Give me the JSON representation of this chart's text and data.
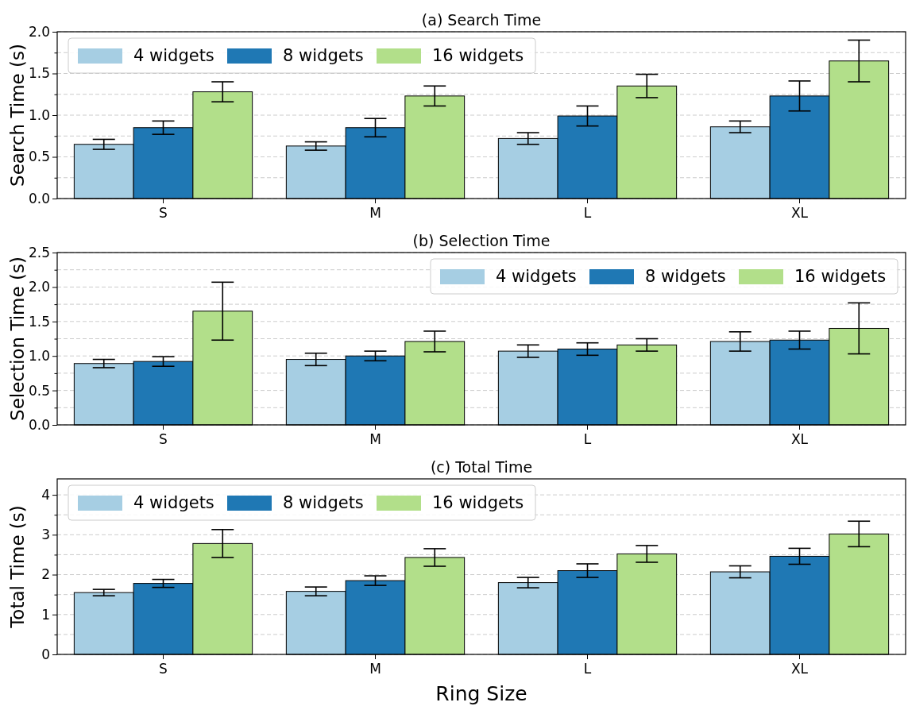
{
  "chart_data": [
    {
      "type": "bar",
      "title": "(a) Search Time",
      "ylabel": "Search Time (s)",
      "categories": [
        "S",
        "M",
        "L",
        "XL"
      ],
      "ylim": [
        0,
        2.0
      ],
      "yticks": [
        {
          "value": 0,
          "label": "0.0"
        },
        {
          "value": 0.25,
          "label": null
        },
        {
          "value": 0.5,
          "label": "0.5"
        },
        {
          "value": 0.75,
          "label": null
        },
        {
          "value": 1,
          "label": "1.0"
        },
        {
          "value": 1.25,
          "label": null
        },
        {
          "value": 1.5,
          "label": "1.5"
        },
        {
          "value": 1.75,
          "label": null
        },
        {
          "value": 2,
          "label": "2.0"
        }
      ],
      "grid": "y",
      "legend": "top left",
      "series": [
        {
          "name": "4 widgets",
          "color": "#a6cee3",
          "values": [
            0.65,
            0.63,
            0.72,
            0.86
          ],
          "errors": [
            0.06,
            0.05,
            0.07,
            0.07
          ]
        },
        {
          "name": "8 widgets",
          "color": "#1f78b4",
          "values": [
            0.85,
            0.85,
            0.99,
            1.23
          ],
          "errors": [
            0.08,
            0.11,
            0.12,
            0.18
          ]
        },
        {
          "name": "16 widgets",
          "color": "#b2df8a",
          "values": [
            1.28,
            1.23,
            1.35,
            1.65
          ],
          "errors": [
            0.12,
            0.12,
            0.14,
            0.25
          ]
        }
      ]
    },
    {
      "type": "bar",
      "title": "(b) Selection Time",
      "ylabel": "Selection Time (s)",
      "categories": [
        "S",
        "M",
        "L",
        "XL"
      ],
      "ylim": [
        0,
        2.5
      ],
      "yticks": [
        {
          "value": 0,
          "label": "0.0"
        },
        {
          "value": 0.25,
          "label": null
        },
        {
          "value": 0.5,
          "label": "0.5"
        },
        {
          "value": 0.75,
          "label": null
        },
        {
          "value": 1,
          "label": "1.0"
        },
        {
          "value": 1.25,
          "label": null
        },
        {
          "value": 1.5,
          "label": "1.5"
        },
        {
          "value": 1.75,
          "label": null
        },
        {
          "value": 2,
          "label": "2.0"
        },
        {
          "value": 2.25,
          "label": null
        },
        {
          "value": 2.5,
          "label": "2.5"
        }
      ],
      "grid": "y",
      "legend": "top right",
      "series": [
        {
          "name": "4 widgets",
          "color": "#a6cee3",
          "values": [
            0.89,
            0.95,
            1.07,
            1.21
          ],
          "errors": [
            0.06,
            0.09,
            0.09,
            0.14
          ]
        },
        {
          "name": "8 widgets",
          "color": "#1f78b4",
          "values": [
            0.92,
            1.0,
            1.1,
            1.23
          ],
          "errors": [
            0.07,
            0.07,
            0.09,
            0.13
          ]
        },
        {
          "name": "16 widgets",
          "color": "#b2df8a",
          "values": [
            1.65,
            1.21,
            1.16,
            1.4
          ],
          "errors": [
            0.42,
            0.15,
            0.09,
            0.37
          ]
        }
      ]
    },
    {
      "type": "bar",
      "title": "(c) Total Time",
      "ylabel": "Total Time (s)",
      "xlabel": "Ring Size",
      "categories": [
        "S",
        "M",
        "L",
        "XL"
      ],
      "ylim": [
        0,
        4.4
      ],
      "yticks": [
        0,
        {
          "value": 0.5,
          "label": null
        },
        1,
        {
          "value": 1.5,
          "label": null
        },
        2,
        {
          "value": 2.5,
          "label": null
        },
        3,
        {
          "value": 3.5,
          "label": null
        },
        4
      ],
      "grid": "y",
      "legend": "top left",
      "series": [
        {
          "name": "4 widgets",
          "color": "#a6cee3",
          "values": [
            1.55,
            1.58,
            1.8,
            2.07
          ],
          "errors": [
            0.08,
            0.11,
            0.13,
            0.15
          ]
        },
        {
          "name": "8 widgets",
          "color": "#1f78b4",
          "values": [
            1.78,
            1.85,
            2.1,
            2.46
          ],
          "errors": [
            0.1,
            0.12,
            0.17,
            0.2
          ]
        },
        {
          "name": "16 widgets",
          "color": "#b2df8a",
          "values": [
            2.78,
            2.43,
            2.52,
            3.02
          ],
          "errors": [
            0.35,
            0.22,
            0.21,
            0.32
          ]
        }
      ]
    }
  ]
}
